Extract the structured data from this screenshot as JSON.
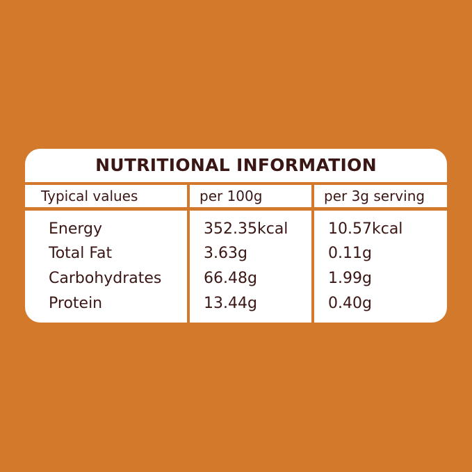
{
  "panel": {
    "title": "NUTRITIONAL INFORMATION"
  },
  "table": {
    "headers": [
      "Typical values",
      "per 100g",
      "per 3g serving"
    ],
    "rows": [
      {
        "nutrient": "Energy",
        "per100": "352.35kcal",
        "perServing": "10.57kcal"
      },
      {
        "nutrient": "Total Fat",
        "per100": "3.63g",
        "perServing": "0.11g"
      },
      {
        "nutrient": "Carbohydrates",
        "per100": "66.48g",
        "perServing": "1.99g"
      },
      {
        "nutrient": "Protein",
        "per100": "13.44g",
        "perServing": "0.40g"
      }
    ]
  },
  "colors": {
    "background": "#d2792b",
    "panel": "#ffffff",
    "text": "#3a1714"
  }
}
